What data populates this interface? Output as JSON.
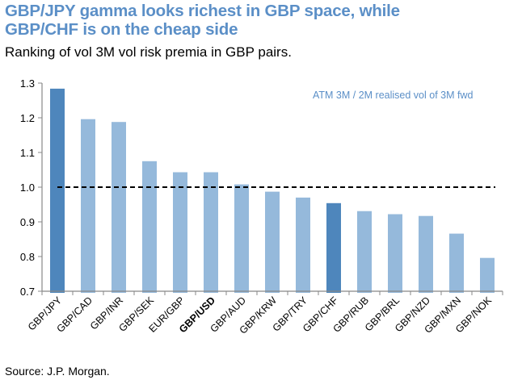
{
  "header": {
    "title_line1": "GBP/JPY gamma looks richest in GBP space, while",
    "title_line2": "GBP/CHF is on the cheap side",
    "subtitle": "Ranking of vol 3M vol risk premia in GBP pairs."
  },
  "footer": {
    "source": "Source: J.P. Morgan."
  },
  "colors": {
    "highlight": "#4E86BC",
    "bar": "#95B9DB",
    "title": "#5B8FC7",
    "reference_line": "#000000"
  },
  "chart_data": {
    "type": "bar",
    "title": "GBP/JPY gamma looks richest in GBP space, while GBP/CHF is on the cheap side",
    "subtitle": "Ranking of vol 3M vol risk premia in GBP pairs.",
    "xlabel": "",
    "ylabel": "",
    "ylim": [
      0.7,
      1.3
    ],
    "yticks": [
      0.7,
      0.8,
      0.9,
      1.0,
      1.1,
      1.2,
      1.3
    ],
    "ytick_labels": [
      "0.7",
      "0.8",
      "0.9",
      "1.0",
      "1.1",
      "1.2",
      "1.3"
    ],
    "grid": false,
    "annotation": "ATM 3M / 2M realised vol of 3M fwd",
    "reference_line": {
      "y": 1.0,
      "style": "dashed"
    },
    "categories": [
      "GBP/JPY",
      "GBP/CAD",
      "GBP/INR",
      "GBP/SEK",
      "EUR/GBP",
      "GBP/USD",
      "GBP/AUD",
      "GBP/KRW",
      "GBP/TRY",
      "GBP/CHF",
      "GBP/RUB",
      "GBP/BRL",
      "GBP/NZD",
      "GBP/MXN",
      "GBP/NOK"
    ],
    "values": [
      1.284,
      1.196,
      1.188,
      1.075,
      1.043,
      1.043,
      1.008,
      0.987,
      0.97,
      0.954,
      0.931,
      0.922,
      0.917,
      0.866,
      0.796
    ],
    "highlighted": [
      "GBP/JPY",
      "GBP/CHF"
    ],
    "bold_labels": [
      "GBP/USD"
    ]
  }
}
